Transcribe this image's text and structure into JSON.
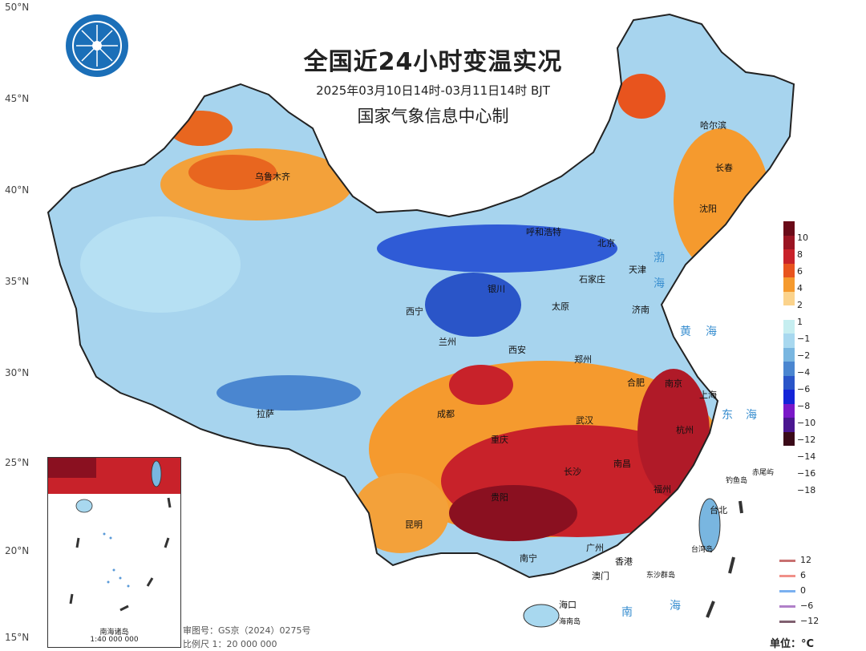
{
  "title": "全国近24小时变温实况",
  "subtitle": "2025年03月10日14时-03月11日14时 BJT",
  "issuer": "国家气象信息中心制",
  "lat_labels": [
    "50°N",
    "45°N",
    "40°N",
    "35°N",
    "30°N",
    "25°N",
    "20°N",
    "15°N"
  ],
  "cities": [
    "哈尔滨",
    "长春",
    "沈阳",
    "乌鲁木齐",
    "呼和浩特",
    "北京",
    "天津",
    "石家庄",
    "银川",
    "西宁",
    "太原",
    "济南",
    "兰州",
    "西安",
    "郑州",
    "合肥",
    "南京",
    "上海",
    "杭州",
    "武汉",
    "成都",
    "拉萨",
    "重庆",
    "长沙",
    "南昌",
    "贵阳",
    "福州",
    "昆明",
    "台北",
    "广州",
    "南宁",
    "香港",
    "澳门",
    "海口",
    "台湾岛",
    "钓鱼岛",
    "赤尾屿",
    "东沙群岛",
    "海南岛"
  ],
  "seas": [
    "渤",
    "海",
    "黄",
    "海",
    "东",
    "海",
    "南",
    "海"
  ],
  "legend": {
    "ticks": [
      "10",
      "8",
      "6",
      "4",
      "2",
      "1",
      "−1",
      "−2",
      "−4",
      "−6",
      "−8",
      "−10",
      "−12",
      "−14",
      "−16",
      "−18"
    ],
    "colors": [
      "#6a0a18",
      "#9a1422",
      "#c8222a",
      "#e8541e",
      "#f59a2e",
      "#fbd38c",
      "#ffffff",
      "#c6eef0",
      "#a8d8ef",
      "#79b6e0",
      "#4a86d0",
      "#2a55c8",
      "#1424d8",
      "#7a18c8",
      "#4a1690",
      "#3a0a18"
    ],
    "unit": "单位：°C"
  },
  "line_legend": [
    {
      "label": "12",
      "color": "#c87070"
    },
    {
      "label": "6",
      "color": "#f09088"
    },
    {
      "label": "0",
      "color": "#7ab0f0"
    },
    {
      "label": "−6",
      "color": "#b080c8"
    },
    {
      "label": "−12",
      "color": "#806070"
    }
  ],
  "footnote": {
    "review": "审图号：GS京（2024）0275号",
    "scale": "比例尺 1：20 000 000"
  },
  "inset": {
    "title": "南海诸岛",
    "scale": "1:40 000 000"
  }
}
